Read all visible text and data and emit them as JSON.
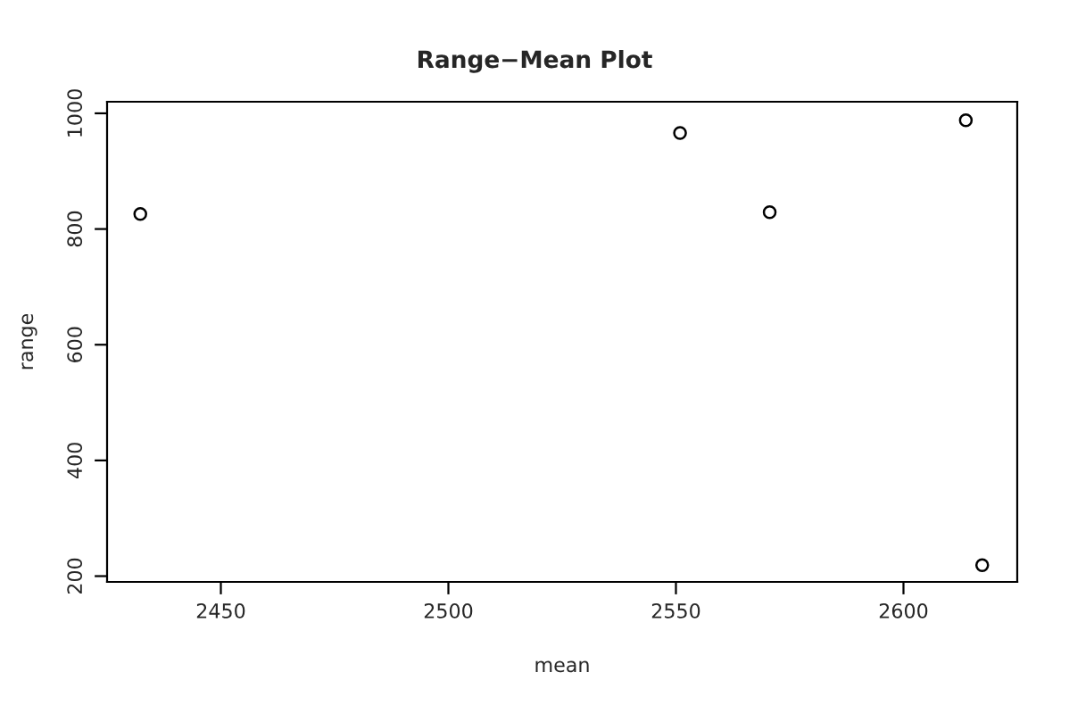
{
  "chart_data": {
    "type": "scatter",
    "title": "Range−Mean Plot",
    "xlabel": "mean",
    "ylabel": "range",
    "x": [
      2432.3,
      2550.9,
      2570.6,
      2613.7,
      2617.3
    ],
    "values": [
      826,
      966,
      829,
      988,
      219
    ],
    "color": "#000000",
    "marker": "circle",
    "xlim": [
      2425,
      2625
    ],
    "ylim": [
      190,
      1020
    ],
    "xticks": [
      2450,
      2500,
      2550,
      2600
    ],
    "yticks": [
      200,
      400,
      600,
      800,
      1000
    ],
    "grid": false,
    "legend": false
  }
}
